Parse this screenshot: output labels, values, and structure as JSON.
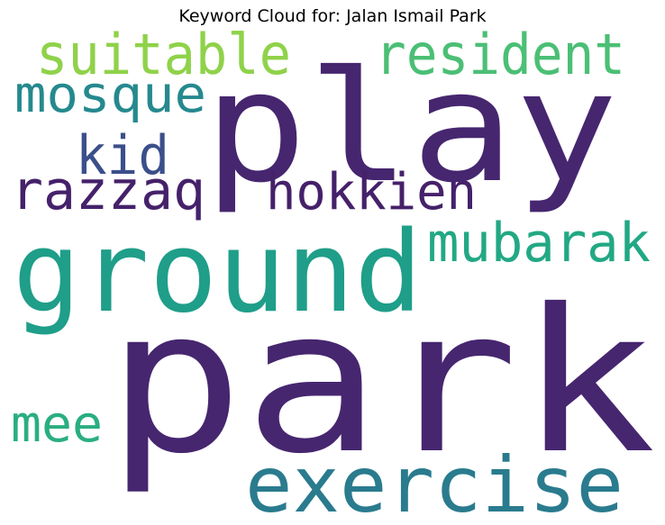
{
  "title": "Keyword Cloud for: Jalan Ismail Park",
  "words": [
    {
      "text": "park",
      "color": "#46266f"
    },
    {
      "text": "play",
      "color": "#46266f"
    },
    {
      "text": "ground",
      "color": "#1f9e89"
    },
    {
      "text": "exercise",
      "color": "#2a7b8e"
    },
    {
      "text": "suitable",
      "color": "#8fd24a"
    },
    {
      "text": "resident",
      "color": "#4bbf75"
    },
    {
      "text": "mosque",
      "color": "#25898e"
    },
    {
      "text": "kid",
      "color": "#3b4f8a"
    },
    {
      "text": "razzaq",
      "color": "#45216a"
    },
    {
      "text": "hokkien",
      "color": "#45216a"
    },
    {
      "text": "mubarak",
      "color": "#22a884"
    },
    {
      "text": "mee",
      "color": "#2aae80"
    }
  ]
}
